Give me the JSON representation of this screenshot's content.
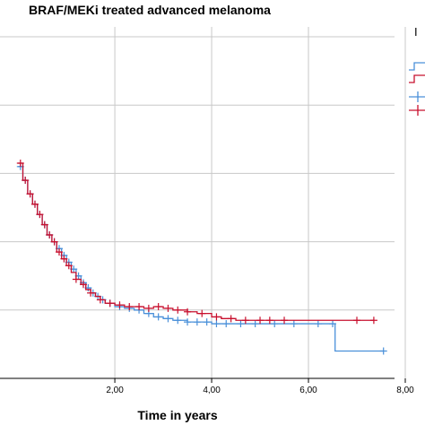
{
  "chart_data": {
    "type": "line",
    "subtype": "kaplan-meier",
    "title": "BRAF/MEKi treated advanced melanoma",
    "xlabel": "Time in years",
    "ylabel": "",
    "xlim": [
      -0.15,
      8.0
    ],
    "ylim": [
      0.0,
      1.05
    ],
    "x_ticks": [
      2,
      4,
      6,
      8
    ],
    "x_tick_labels": [
      "2,00",
      "4,00",
      "6,00",
      "8,00"
    ],
    "y_gridlines": [
      0.0,
      0.2,
      0.4,
      0.6,
      0.8,
      1.0
    ],
    "x_gridlines": [
      2,
      4,
      6,
      8
    ],
    "grid": true,
    "legend": {
      "placement": "top-right",
      "heading": "I"
    },
    "series": [
      {
        "color": "#4a90d9",
        "x": [
          0.0,
          0.1,
          0.2,
          0.3,
          0.4,
          0.5,
          0.6,
          0.7,
          0.8,
          0.9,
          1.0,
          1.1,
          1.2,
          1.3,
          1.4,
          1.5,
          1.6,
          1.7,
          1.8,
          2.0,
          2.2,
          2.4,
          2.6,
          2.8,
          3.0,
          3.2,
          3.5,
          3.8,
          4.0,
          4.5,
          5.0,
          5.5,
          6.0,
          6.5,
          6.55,
          7.55
        ],
        "y": [
          0.62,
          0.58,
          0.54,
          0.51,
          0.48,
          0.45,
          0.42,
          0.4,
          0.38,
          0.36,
          0.34,
          0.32,
          0.3,
          0.28,
          0.265,
          0.25,
          0.24,
          0.23,
          0.22,
          0.21,
          0.205,
          0.2,
          0.19,
          0.18,
          0.175,
          0.17,
          0.165,
          0.165,
          0.16,
          0.16,
          0.16,
          0.16,
          0.16,
          0.16,
          0.08,
          0.08
        ],
        "censor_x": [
          0.05,
          0.15,
          0.25,
          0.35,
          0.45,
          0.55,
          0.65,
          0.75,
          0.85,
          0.95,
          1.05,
          1.15,
          1.25,
          1.35,
          1.45,
          1.55,
          1.65,
          1.75,
          1.9,
          2.1,
          2.3,
          2.5,
          2.7,
          2.9,
          3.1,
          3.3,
          3.5,
          3.7,
          3.9,
          4.1,
          4.3,
          4.6,
          4.9,
          5.3,
          5.7,
          6.2,
          6.5,
          7.55
        ]
      },
      {
        "color": "#c8102e",
        "x": [
          0.0,
          0.1,
          0.2,
          0.3,
          0.4,
          0.5,
          0.6,
          0.7,
          0.8,
          0.9,
          1.0,
          1.1,
          1.2,
          1.3,
          1.4,
          1.5,
          1.6,
          1.7,
          1.8,
          2.0,
          2.2,
          2.4,
          2.6,
          2.8,
          3.0,
          3.2,
          3.5,
          3.7,
          4.0,
          4.2,
          4.5,
          5.0,
          5.5,
          6.0,
          6.5,
          7.0,
          7.35
        ],
        "y": [
          0.63,
          0.58,
          0.54,
          0.51,
          0.48,
          0.45,
          0.42,
          0.4,
          0.37,
          0.35,
          0.33,
          0.31,
          0.29,
          0.275,
          0.26,
          0.25,
          0.24,
          0.23,
          0.22,
          0.215,
          0.21,
          0.21,
          0.205,
          0.21,
          0.205,
          0.2,
          0.195,
          0.19,
          0.18,
          0.175,
          0.17,
          0.17,
          0.17,
          0.17,
          0.17,
          0.17,
          0.17
        ],
        "censor_x": [
          0.05,
          0.15,
          0.25,
          0.35,
          0.45,
          0.55,
          0.65,
          0.75,
          0.85,
          0.95,
          1.05,
          1.2,
          1.35,
          1.5,
          1.7,
          1.9,
          2.1,
          2.3,
          2.5,
          2.7,
          2.9,
          3.1,
          3.3,
          3.5,
          3.8,
          4.1,
          4.4,
          4.7,
          5.0,
          5.2,
          5.5,
          7.0,
          7.35
        ]
      }
    ]
  }
}
